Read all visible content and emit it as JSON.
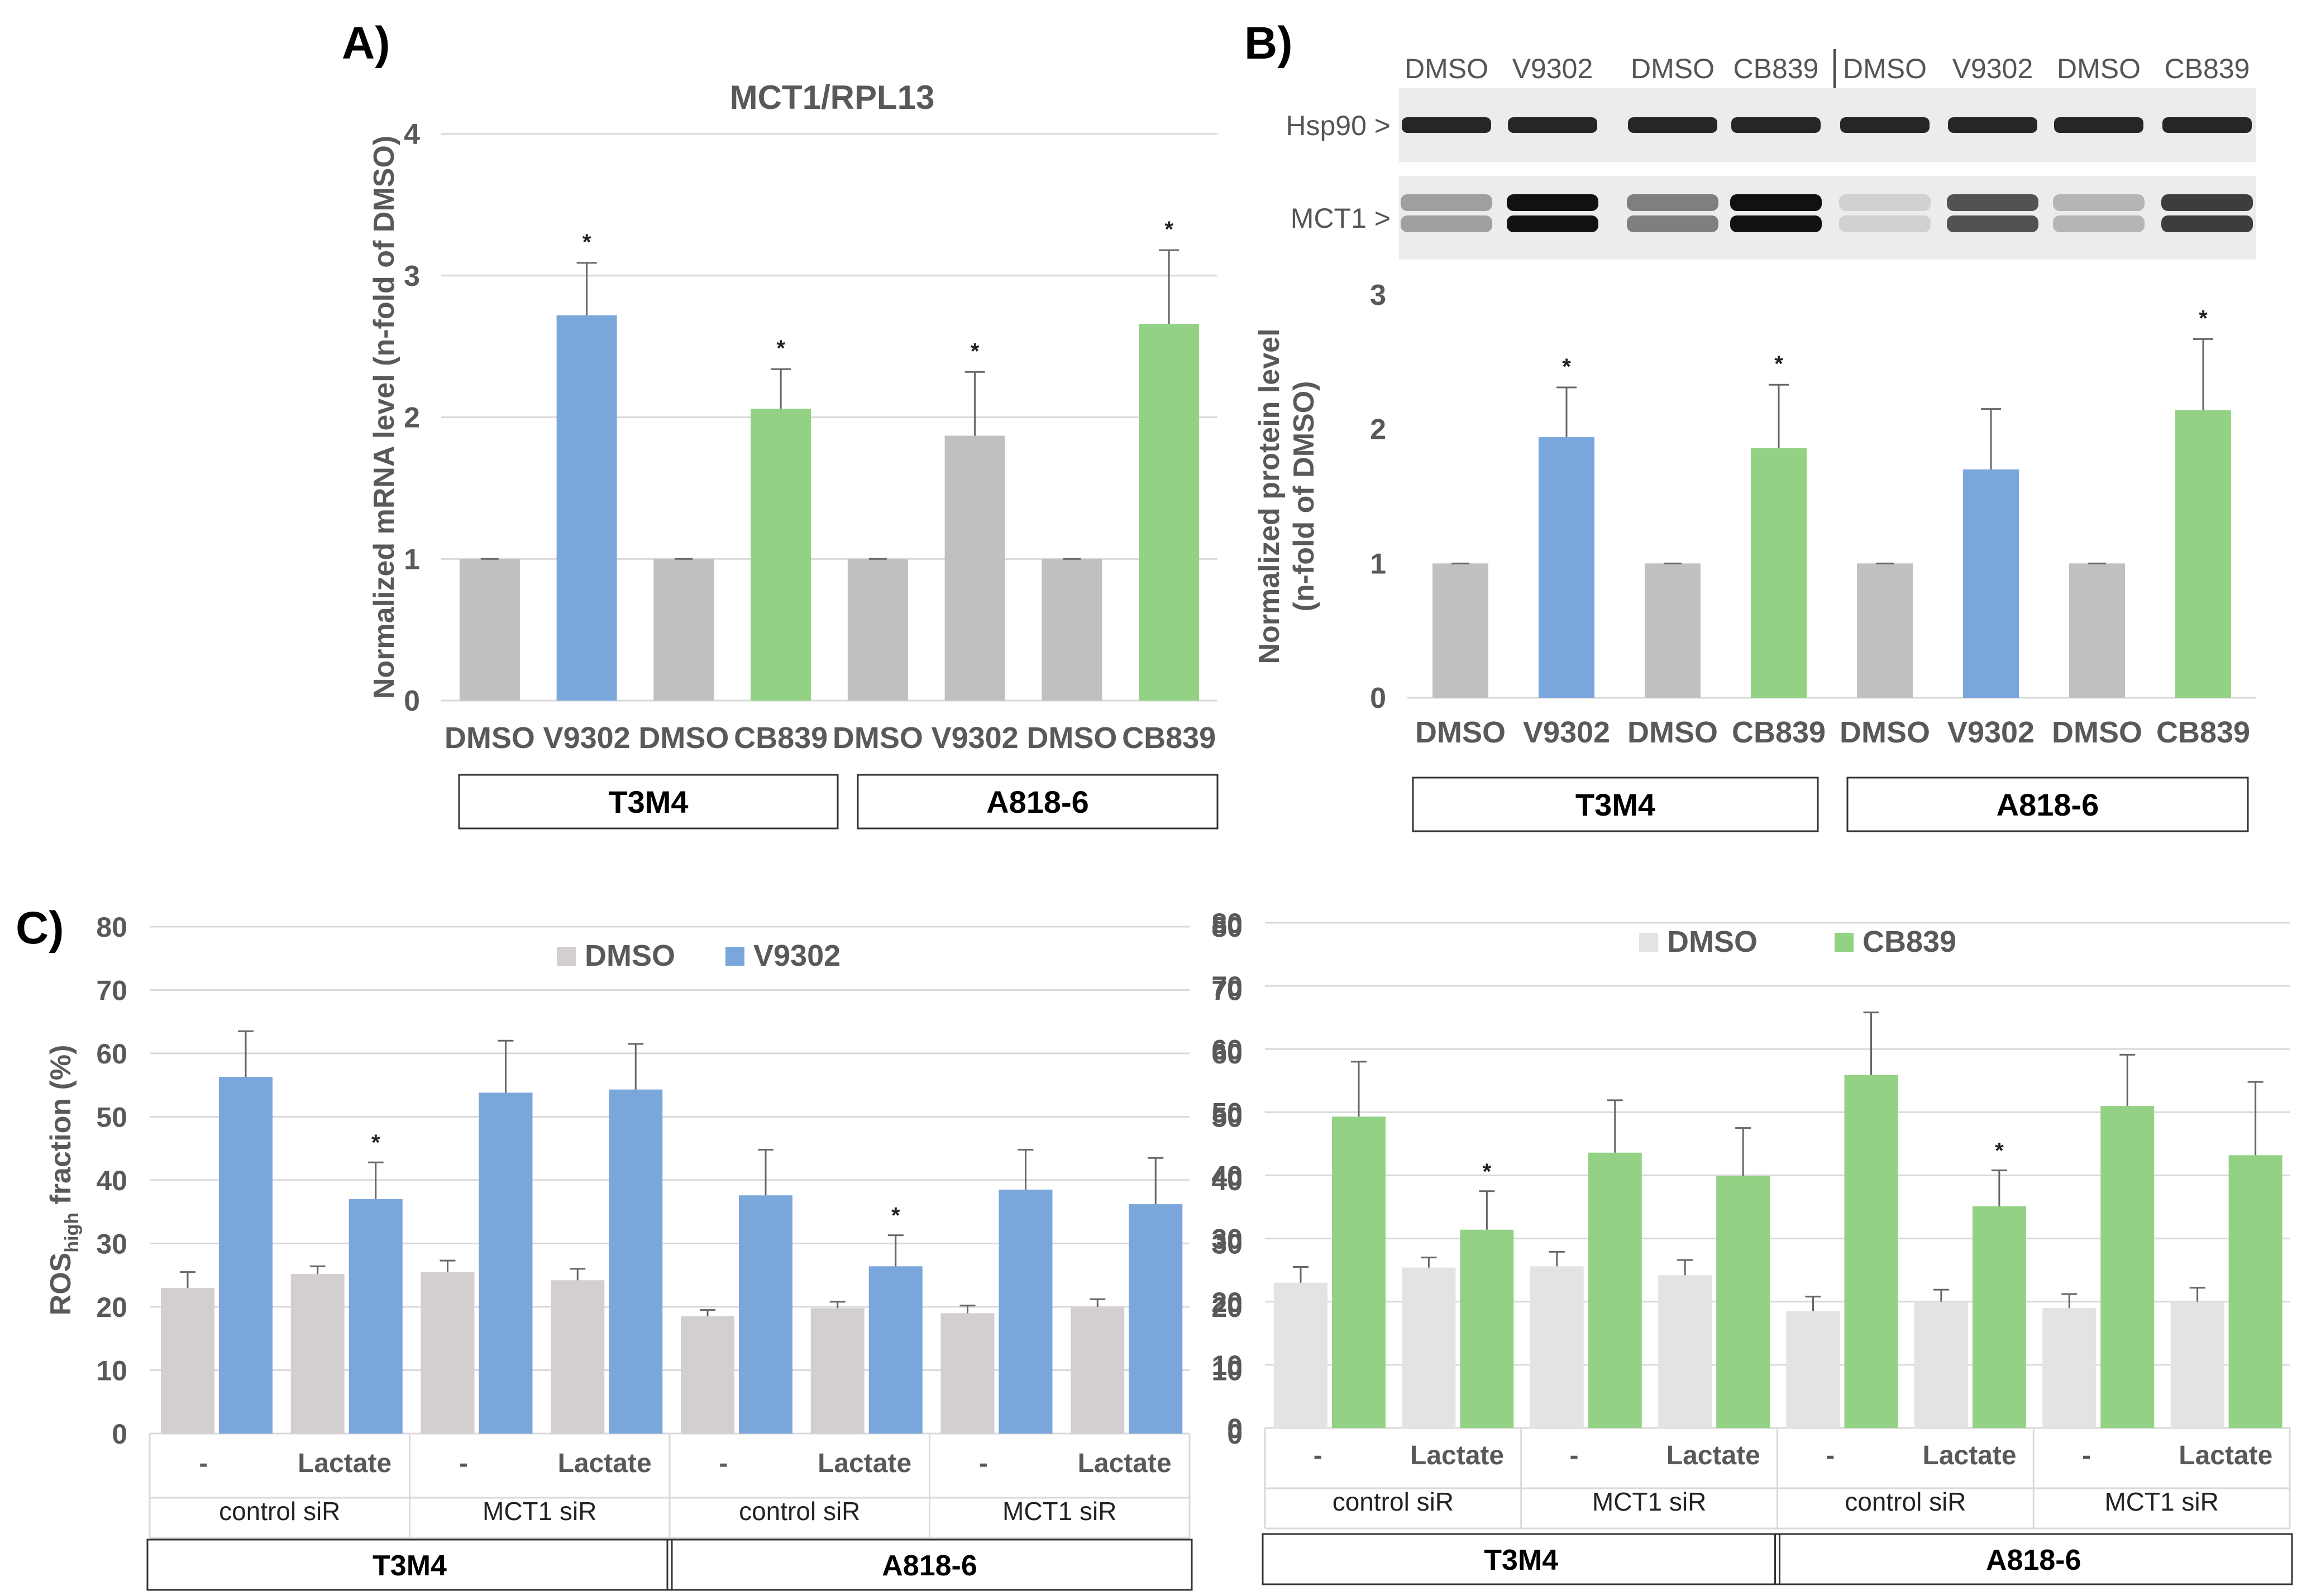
{
  "colors": {
    "gray": "#c0c0c0",
    "blue": "#7aa6dc",
    "green": "#93d284",
    "lightgray_c1": "#d3cfcf",
    "lightgray_c2": "#e3e3e3",
    "axis_text": "#595959",
    "gridline": "#d9d9d9"
  },
  "panel_labels": {
    "a": "A)",
    "b": "B)",
    "c": "C)"
  },
  "chart_data": [
    {
      "id": "A",
      "type": "bar",
      "title": "MCT1/RPL13",
      "ylabel": "Normalized mRNA level (n-fold of DMSO)",
      "xlabel": "",
      "ylim": [
        0,
        4
      ],
      "yticks": [
        "0",
        "1",
        "2",
        "3",
        "4"
      ],
      "grid": true,
      "categories": [
        "DMSO",
        "V9302",
        "DMSO",
        "CB839",
        "DMSO",
        "V9302",
        "DMSO",
        "CB839"
      ],
      "values": [
        1.0,
        2.72,
        1.0,
        2.06,
        1.0,
        1.87,
        1.0,
        2.66
      ],
      "errors": [
        0.0,
        0.37,
        0.0,
        0.28,
        0.0,
        0.45,
        0.0,
        0.52
      ],
      "bar_colors": [
        "gray",
        "blue",
        "gray",
        "green",
        "gray",
        "gray",
        "gray",
        "green"
      ],
      "significance": [
        "",
        "*",
        "",
        "*",
        "",
        "*",
        "",
        "*"
      ],
      "groups": [
        {
          "label": "T3M4",
          "span": [
            0,
            3
          ]
        },
        {
          "label": "A818-6",
          "span": [
            4,
            7
          ]
        }
      ]
    },
    {
      "id": "B",
      "type": "bar",
      "title": "",
      "ylabel": "Normalized protein level (n-fold of DMSO)",
      "ylabel_lines": [
        "Normalized protein level",
        "(n-fold of DMSO)"
      ],
      "xlabel": "",
      "ylim": [
        0,
        3
      ],
      "yticks": [
        "0",
        "1",
        "2",
        "3"
      ],
      "grid": false,
      "categories": [
        "DMSO",
        "V9302",
        "DMSO",
        "CB839",
        "DMSO",
        "V9302",
        "DMSO",
        "CB839"
      ],
      "values": [
        1.0,
        1.94,
        1.0,
        1.86,
        1.0,
        1.7,
        1.0,
        2.14
      ],
      "errors": [
        0.0,
        0.37,
        0.0,
        0.47,
        0.0,
        0.45,
        0.0,
        0.53
      ],
      "bar_colors": [
        "gray",
        "blue",
        "gray",
        "green",
        "gray",
        "blue",
        "gray",
        "green"
      ],
      "significance": [
        "",
        "*",
        "",
        "*",
        "",
        "",
        "",
        "*"
      ],
      "groups": [
        {
          "label": "T3M4",
          "span": [
            0,
            3
          ]
        },
        {
          "label": "A818-6",
          "span": [
            4,
            7
          ]
        }
      ],
      "blot": {
        "lane_labels": [
          "DMSO",
          "V9302",
          "DMSO",
          "CB839",
          "DMSO",
          "V9302",
          "DMSO",
          "CB839"
        ],
        "rows": [
          {
            "label": "Hsp90 >",
            "intensity": [
              0.9,
              0.9,
              0.9,
              0.9,
              0.9,
              0.9,
              0.9,
              0.9
            ]
          },
          {
            "label": "MCT1 >",
            "intensity": [
              0.35,
              1.0,
              0.5,
              1.0,
              0.12,
              0.7,
              0.25,
              0.8
            ]
          }
        ]
      }
    },
    {
      "id": "C-left",
      "type": "bar",
      "title": "",
      "ylabel": "ROS",
      "ylabel_sub": "high",
      "ylabel_suffix": " fraction (%)",
      "ylim": [
        0,
        80
      ],
      "yticks": [
        "0",
        "10",
        "20",
        "30",
        "40",
        "50",
        "60",
        "70",
        "80"
      ],
      "grid": true,
      "legend": [
        "DMSO",
        "V9302"
      ],
      "series": [
        {
          "name": "DMSO",
          "color": "lightgray_c1",
          "values": [
            23,
            25.2,
            25.5,
            24.2,
            18.5,
            19.8,
            19.0,
            20.0
          ],
          "errors": [
            2.5,
            1.2,
            1.8,
            1.8,
            1.0,
            1.0,
            1.2,
            1.2
          ]
        },
        {
          "name": "V9302",
          "color": "blue",
          "values": [
            56.3,
            37.0,
            53.8,
            54.3,
            37.6,
            26.4,
            38.5,
            36.2
          ],
          "errors": [
            7.2,
            5.8,
            8.2,
            7.2,
            7.2,
            4.9,
            6.3,
            7.3
          ]
        }
      ],
      "significance": [
        "",
        "*",
        "",
        "",
        "",
        "*",
        "",
        ""
      ],
      "categories": [
        "-",
        "Lactate",
        "-",
        "Lactate",
        "-",
        "Lactate",
        "-",
        "Lactate"
      ],
      "subgroups": [
        "control siR",
        "MCT1 siR",
        "control siR",
        "MCT1 siR"
      ],
      "groups": [
        "T3M4",
        "A818-6"
      ]
    },
    {
      "id": "C-right",
      "type": "bar",
      "title": "",
      "ylabel": "",
      "ylim": [
        0,
        80
      ],
      "yticks": [
        "0",
        "10",
        "20",
        "30",
        "40",
        "50",
        "60",
        "70",
        "80"
      ],
      "grid": true,
      "legend": [
        "DMSO",
        "CB839"
      ],
      "series": [
        {
          "name": "DMSO",
          "color": "lightgray_c2",
          "values": [
            23,
            25.4,
            25.6,
            24.2,
            18.5,
            20.0,
            19.0,
            20.0
          ],
          "errors": [
            2.5,
            1.6,
            2.3,
            2.4,
            2.3,
            1.9,
            2.2,
            2.2
          ]
        },
        {
          "name": "CB839",
          "color": "green",
          "values": [
            49.3,
            31.4,
            43.6,
            39.9,
            55.9,
            35.1,
            51.0,
            43.2
          ],
          "errors": [
            8.7,
            6.1,
            8.3,
            7.6,
            9.9,
            5.7,
            8.1,
            11.6
          ]
        }
      ],
      "significance": [
        "",
        "*",
        "",
        "",
        "",
        "*",
        "",
        ""
      ],
      "categories": [
        "-",
        "Lactate",
        "-",
        "Lactate",
        "-",
        "Lactate",
        "-",
        "Lactate"
      ],
      "subgroups": [
        "control siR",
        "MCT1 siR",
        "control siR",
        "MCT1 siR"
      ],
      "groups": [
        "T3M4",
        "A818-6"
      ]
    }
  ]
}
